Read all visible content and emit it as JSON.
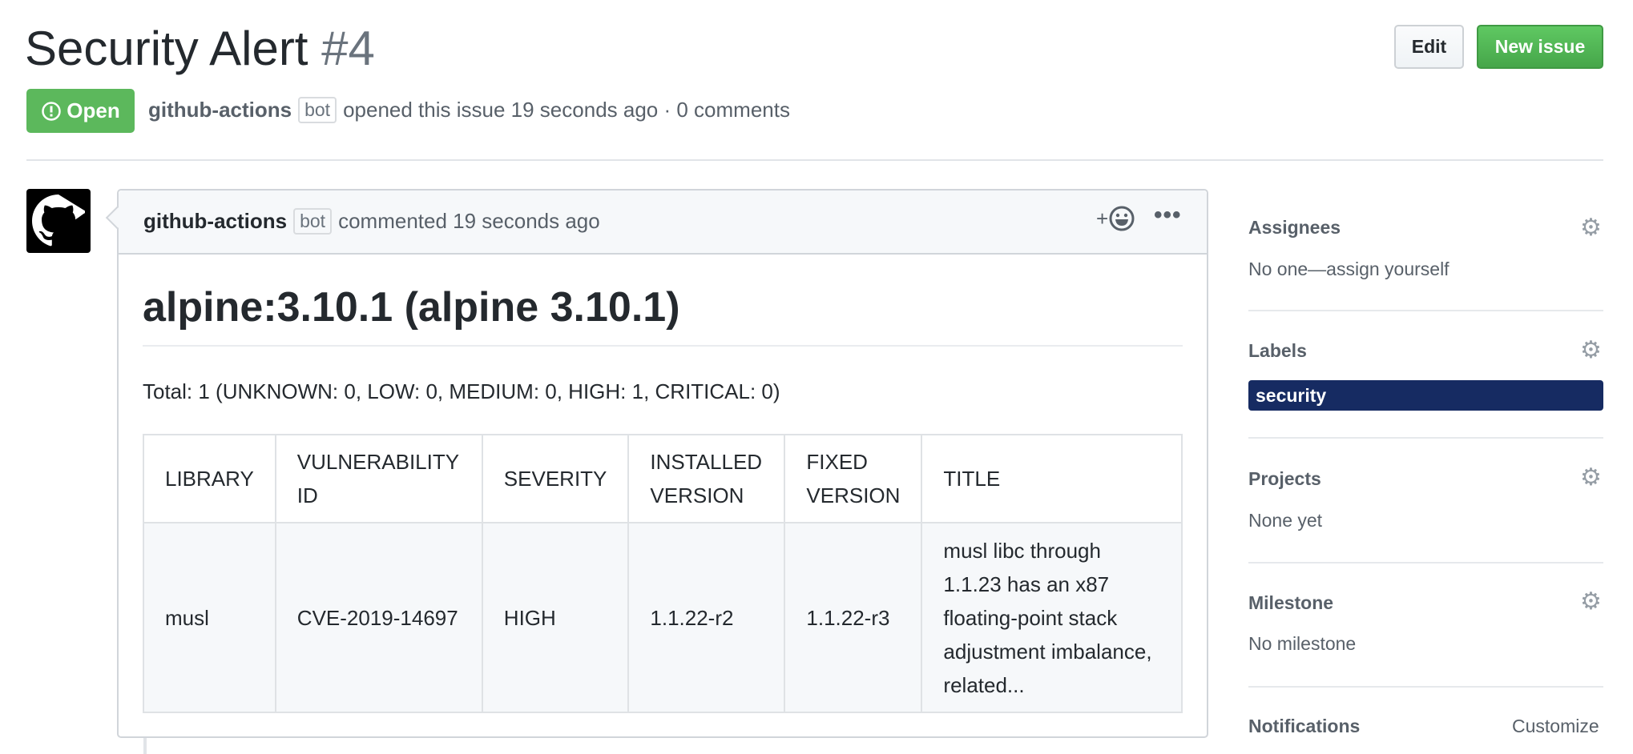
{
  "issue": {
    "title": "Security Alert",
    "number": "#4",
    "state": "Open",
    "author": "github-actions",
    "author_badge": "bot",
    "meta": "opened this issue 19 seconds ago · 0 comments"
  },
  "toolbar": {
    "edit_label": "Edit",
    "new_issue_label": "New issue"
  },
  "comment": {
    "author": "github-actions",
    "author_badge": "bot",
    "meta": "commented 19 seconds ago",
    "reaction_plus": "+",
    "heading": "alpine:3.10.1 (alpine 3.10.1)",
    "total": "Total: 1 (UNKNOWN: 0, LOW: 0, MEDIUM: 0, HIGH: 1, CRITICAL: 0)",
    "table": {
      "headers": [
        "LIBRARY",
        "VULNERABILITY ID",
        "SEVERITY",
        "INSTALLED VERSION",
        "FIXED VERSION",
        "TITLE"
      ],
      "rows": [
        [
          "musl",
          "CVE-2019-14697",
          "HIGH",
          "1.1.22-r2",
          "1.1.22-r3",
          "musl libc through 1.1.23 has an x87 floating-point stack adjustment imbalance, related..."
        ]
      ]
    }
  },
  "sidebar": {
    "assignees": {
      "title": "Assignees",
      "value": "No one—assign yourself"
    },
    "labels": {
      "title": "Labels",
      "items": [
        {
          "name": "security",
          "color": "#162b62"
        }
      ]
    },
    "projects": {
      "title": "Projects",
      "value": "None yet"
    },
    "milestone": {
      "title": "Milestone",
      "value": "No milestone"
    },
    "notifications": {
      "title": "Notifications",
      "action": "Customize"
    }
  },
  "colors": {
    "open": "#5cb85c",
    "new_issue": "#46a64a",
    "label_security": "#162b62"
  },
  "icons": [
    "issue-opened-icon",
    "github-octocat-icon",
    "smiley-icon",
    "kebab-horizontal-icon",
    "gear-icon"
  ]
}
